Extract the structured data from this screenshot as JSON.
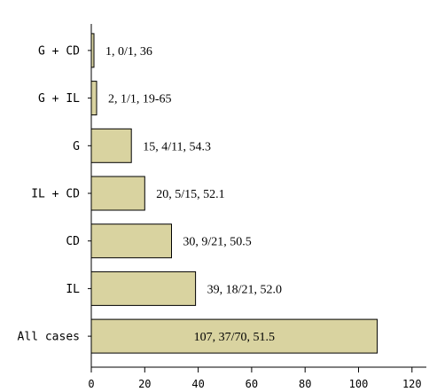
{
  "chart_data": {
    "type": "bar",
    "orientation": "horizontal",
    "title": "",
    "xlabel": "",
    "ylabel": "",
    "xlim": [
      0,
      125
    ],
    "x_ticks": [
      0,
      20,
      40,
      60,
      80,
      100,
      120
    ],
    "x_tick_labels": [
      "0",
      "20",
      "40",
      "60",
      "80",
      "100",
      "120"
    ],
    "grid": false,
    "legend": "none",
    "bar_color": "#d9d3a0",
    "categories": [
      "G + CD",
      "G + IL",
      "G",
      "IL + CD",
      "CD",
      "IL",
      "All cases"
    ],
    "values": [
      1,
      2,
      15,
      20,
      30,
      39,
      107
    ],
    "data_labels": [
      "1, 0/1, 36",
      "2, 1/1, 19-65",
      "15, 4/11, 54.3",
      "20, 5/15, 52.1",
      "30, 9/21, 50.5",
      "39, 18/21, 52.0",
      "107, 37/70, 51.5"
    ]
  }
}
